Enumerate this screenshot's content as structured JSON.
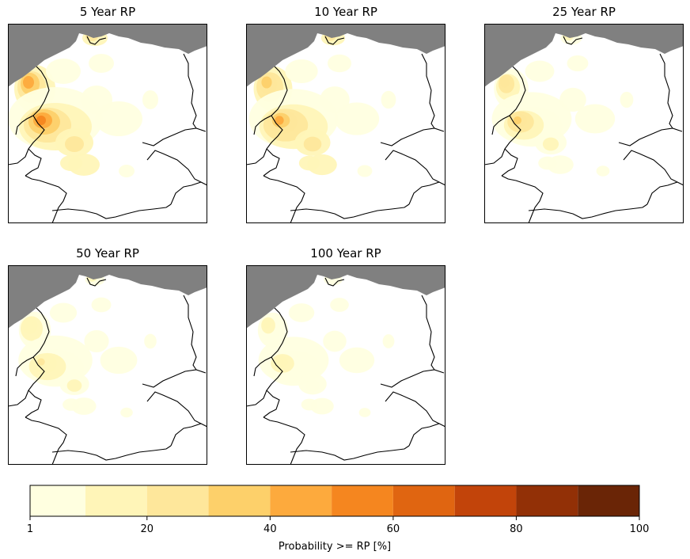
{
  "panels": [
    {
      "title": "5 Year RP",
      "intensity": 1.0
    },
    {
      "title": "10 Year RP",
      "intensity": 0.85
    },
    {
      "title": "25 Year RP",
      "intensity": 0.6
    },
    {
      "title": "50 Year RP",
      "intensity": 0.45
    },
    {
      "title": "100 Year RP",
      "intensity": 0.35
    }
  ],
  "colorbar": {
    "label": "Probability >= RP [%]",
    "bounds": [
      1,
      10,
      20,
      30,
      40,
      50,
      60,
      70,
      80,
      90,
      100
    ],
    "tick_labels": [
      "1",
      "20",
      "40",
      "60",
      "80",
      "100"
    ],
    "tick_values": [
      1,
      20,
      40,
      60,
      80,
      100
    ],
    "colors": [
      "#ffffe0",
      "#fff5b8",
      "#fee79b",
      "#fdd06a",
      "#fdaa3d",
      "#f5861f",
      "#e06511",
      "#c2440a",
      "#923006",
      "#6a2506"
    ]
  },
  "colors": {
    "sea": "#808080",
    "border": "#000000",
    "land": "#ffffff"
  }
}
